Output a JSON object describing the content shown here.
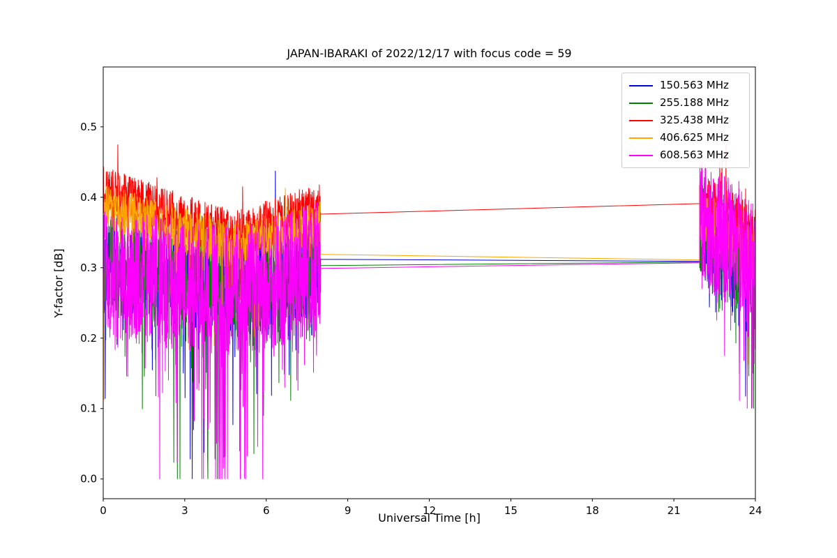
{
  "chart_data": {
    "type": "line",
    "title": "JAPAN-IBARAKI of 2022/12/17 with focus code = 59",
    "xlabel": "Universal Time [h]",
    "ylabel": "Y-factor [dB]",
    "xlim": [
      0,
      24
    ],
    "ylim": [
      -0.028,
      0.585
    ],
    "xticks": [
      0,
      3,
      6,
      9,
      12,
      15,
      18,
      21,
      24
    ],
    "ytick_values": [
      0.0,
      0.1,
      0.2,
      0.3,
      0.4,
      0.5
    ],
    "ytick_labels": [
      "0.0",
      "0.1",
      "0.2",
      "0.3",
      "0.4",
      "0.5"
    ],
    "grid": false,
    "legend": {
      "position": "upper right",
      "labels": [
        "150.563 MHz",
        "255.188 MHz",
        "325.438 MHz",
        "406.625 MHz",
        "608.563 MHz"
      ]
    },
    "series": [
      {
        "name": "150.563 MHz",
        "color": "#0000e6",
        "segments": [
          {
            "kind": "noise",
            "x0": 0,
            "x1": 8,
            "n": 850,
            "seed": 101,
            "c0": 0.305,
            "cm": 0.27,
            "c1": 0.305,
            "um": 0.6,
            "amp": 0.072,
            "win": "mid",
            "spike_p": 0.12,
            "spike_d": 0.16,
            "up_p": 0.012,
            "up_d": 0.13,
            "deep_p": 0.004,
            "deep_d": 0.22,
            "floor": 0.0,
            "cap": 0.455
          },
          {
            "kind": "line",
            "x": [
              8,
              21.95
            ],
            "y": [
              0.312,
              0.309
            ]
          },
          {
            "kind": "noise",
            "x0": 21.95,
            "x1": 24,
            "n": 280,
            "seed": 102,
            "c0": 0.35,
            "cm": 0.33,
            "c1": 0.3,
            "um": 0.5,
            "amp": 0.068,
            "win": "end",
            "spike_p": 0.14,
            "spike_d": 0.15,
            "up_p": 0.01,
            "up_d": 0.06,
            "floor": 0.1,
            "cap": 0.46
          }
        ]
      },
      {
        "name": "255.188 MHz",
        "color": "#008000",
        "segments": [
          {
            "kind": "noise",
            "x0": 0,
            "x1": 8,
            "n": 850,
            "seed": 201,
            "c0": 0.3,
            "cm": 0.27,
            "c1": 0.3,
            "um": 0.6,
            "amp": 0.07,
            "win": "mid",
            "spike_p": 0.12,
            "spike_d": 0.19,
            "up_p": 0.012,
            "up_d": 0.14,
            "deep_p": 0.004,
            "deep_d": 0.26,
            "floor": 0.0,
            "cap": 0.46
          },
          {
            "kind": "line",
            "x": [
              8,
              21.95
            ],
            "y": [
              0.303,
              0.308
            ]
          },
          {
            "kind": "noise",
            "x0": 21.95,
            "x1": 24,
            "n": 280,
            "seed": 202,
            "c0": 0.35,
            "cm": 0.33,
            "c1": 0.3,
            "um": 0.5,
            "amp": 0.068,
            "win": "end",
            "spike_p": 0.14,
            "spike_d": 0.15,
            "up_p": 0.02,
            "up_d": 0.16,
            "floor": 0.1,
            "cap": 0.575
          }
        ]
      },
      {
        "name": "325.438 MHz",
        "color": "#ff0000",
        "segments": [
          {
            "kind": "noise",
            "x0": 0,
            "x1": 8,
            "n": 850,
            "seed": 301,
            "c0": 0.41,
            "cm": 0.347,
            "c1": 0.388,
            "um": 0.6,
            "amp": 0.034,
            "win": "mid",
            "spike_p": 0.1,
            "spike_d": 0.075,
            "up_p": 0.025,
            "up_d": 0.06,
            "floor": 0.22,
            "cap": 0.475
          },
          {
            "kind": "line",
            "x": [
              8,
              21.95
            ],
            "y": [
              0.376,
              0.391
            ]
          },
          {
            "kind": "noise",
            "x0": 21.95,
            "x1": 24,
            "n": 280,
            "seed": 302,
            "c0": 0.392,
            "cm": 0.375,
            "c1": 0.345,
            "um": 0.5,
            "amp": 0.038,
            "win": "end",
            "spike_p": 0.1,
            "spike_d": 0.07,
            "up_p": 0.05,
            "up_d": 0.075,
            "floor": 0.27,
            "cap": 0.475
          }
        ]
      },
      {
        "name": "406.625 MHz",
        "color": "#ffa500",
        "segments": [
          {
            "kind": "noise",
            "x0": 0,
            "x1": 8,
            "n": 850,
            "seed": 401,
            "c0": 0.388,
            "cm": 0.33,
            "c1": 0.362,
            "um": 0.6,
            "amp": 0.034,
            "win": "mid",
            "spike_p": 0.11,
            "spike_d": 0.09,
            "up_p": 0.015,
            "up_d": 0.05,
            "deep_p": 0.003,
            "deep_d": 0.3,
            "floor": 0.04,
            "cap": 0.465
          },
          {
            "kind": "line",
            "x": [
              8,
              21.95
            ],
            "y": [
              0.319,
              0.311
            ]
          },
          {
            "kind": "noise",
            "x0": 21.95,
            "x1": 24,
            "n": 280,
            "seed": 402,
            "c0": 0.372,
            "cm": 0.35,
            "c1": 0.315,
            "um": 0.5,
            "amp": 0.038,
            "win": "end",
            "spike_p": 0.12,
            "spike_d": 0.1,
            "up_p": 0.012,
            "up_d": 0.05,
            "floor": 0.12,
            "cap": 0.47
          }
        ]
      },
      {
        "name": "608.563 MHz",
        "color": "#ff00ff",
        "segments": [
          {
            "kind": "noise",
            "x0": 0,
            "x1": 8,
            "n": 950,
            "seed": 501,
            "c0": 0.295,
            "cm": 0.265,
            "c1": 0.3,
            "um": 0.6,
            "amp": 0.095,
            "win": "mid",
            "spike_p": 0.15,
            "spike_d": 0.23,
            "floor": 0.0,
            "cap": 0.435
          },
          {
            "kind": "line",
            "x": [
              8,
              21.95
            ],
            "y": [
              0.299,
              0.307
            ]
          },
          {
            "kind": "noise",
            "x0": 21.95,
            "x1": 24,
            "n": 300,
            "seed": 502,
            "c0": 0.36,
            "cm": 0.34,
            "c1": 0.3,
            "um": 0.5,
            "amp": 0.092,
            "win": "end",
            "spike_p": 0.16,
            "spike_d": 0.17,
            "up_p": 0.02,
            "up_d": 0.14,
            "floor": 0.1,
            "cap": 0.575
          }
        ]
      }
    ]
  }
}
